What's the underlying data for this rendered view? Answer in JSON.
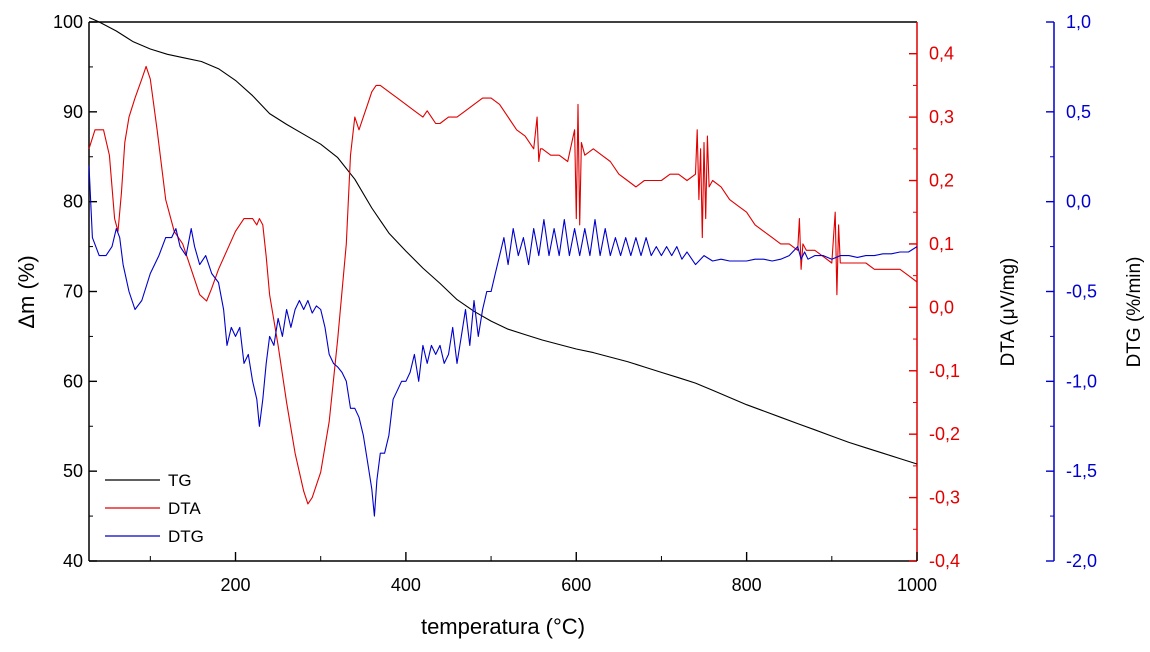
{
  "chart_data": {
    "type": "line",
    "x_axis": {
      "label": "temperatura (°C)",
      "range": [
        28,
        1000
      ],
      "ticks": [
        200,
        400,
        600,
        800,
        1000
      ],
      "tick_labels": [
        "200",
        "400",
        "600",
        "800",
        "1000"
      ]
    },
    "y_axes": {
      "left": {
        "label": "Δm (%)",
        "range": [
          40,
          100
        ],
        "ticks": [
          40,
          50,
          60,
          70,
          80,
          90,
          100
        ],
        "tick_labels": [
          "40",
          "50",
          "60",
          "70",
          "80",
          "90",
          "100"
        ],
        "color": "#000000"
      },
      "right1": {
        "label": "DTA (μV/mg)",
        "range": [
          -0.4,
          0.45
        ],
        "ticks": [
          -0.4,
          -0.3,
          -0.2,
          -0.1,
          0.0,
          0.1,
          0.2,
          0.3,
          0.4
        ],
        "tick_labels": [
          "-0,4",
          "-0,3",
          "-0,2",
          "-0,1",
          "0,0",
          "0,1",
          "0,2",
          "0,3",
          "0,4"
        ],
        "color": "#e00000"
      },
      "right2": {
        "label": "DTG (%/min)",
        "range": [
          -2.0,
          1.0
        ],
        "ticks": [
          -2.0,
          -1.5,
          -1.0,
          -0.5,
          0.0,
          0.5,
          1.0
        ],
        "tick_labels": [
          "-2,0",
          "-1,5",
          "-1,0",
          "-0,5",
          "0,0",
          "0,5",
          "1,0"
        ],
        "color": "#0000cc"
      }
    },
    "legend": {
      "position": "bottom-left",
      "entries": [
        "TG",
        "DTA",
        "DTG"
      ]
    },
    "series": [
      {
        "name": "TG",
        "axis": "left",
        "color": "#000000",
        "x": [
          28,
          40,
          60,
          80,
          100,
          120,
          140,
          160,
          180,
          200,
          220,
          240,
          260,
          280,
          300,
          320,
          340,
          360,
          380,
          400,
          420,
          440,
          460,
          480,
          500,
          520,
          540,
          560,
          580,
          600,
          620,
          640,
          660,
          680,
          700,
          720,
          740,
          760,
          780,
          800,
          820,
          840,
          860,
          880,
          900,
          920,
          940,
          960,
          980,
          1000
        ],
        "y": [
          100.5,
          100,
          99,
          97.8,
          97,
          96.4,
          96,
          95.6,
          94.8,
          93.5,
          91.8,
          89.8,
          88.6,
          87.5,
          86.4,
          84.9,
          82.5,
          79.3,
          76.5,
          74.5,
          72.6,
          70.9,
          69.1,
          67.8,
          66.7,
          65.8,
          65.2,
          64.6,
          64.1,
          63.6,
          63.2,
          62.7,
          62.2,
          61.6,
          61,
          60.4,
          59.8,
          59,
          58.2,
          57.4,
          56.7,
          56,
          55.3,
          54.6,
          53.9,
          53.2,
          52.6,
          52,
          51.4,
          50.8
        ]
      },
      {
        "name": "DTA",
        "axis": "right1",
        "color": "#e00000",
        "x": [
          28,
          35,
          45,
          52,
          58,
          62,
          66,
          70,
          75,
          82,
          90,
          95,
          100,
          108,
          118,
          128,
          138,
          148,
          158,
          166,
          172,
          180,
          190,
          200,
          210,
          220,
          225,
          228,
          232,
          236,
          240,
          250,
          260,
          270,
          280,
          285,
          290,
          300,
          310,
          320,
          330,
          335,
          340,
          345,
          350,
          355,
          360,
          365,
          370,
          380,
          390,
          400,
          410,
          420,
          425,
          430,
          435,
          440,
          450,
          460,
          470,
          480,
          490,
          500,
          510,
          520,
          530,
          540,
          550,
          554,
          556,
          558,
          560,
          570,
          580,
          590,
          598,
          600,
          602,
          604,
          606,
          610,
          620,
          630,
          640,
          650,
          660,
          670,
          680,
          690,
          700,
          710,
          720,
          730,
          740,
          742,
          744,
          746,
          748,
          750,
          752,
          754,
          756,
          760,
          770,
          780,
          790,
          800,
          810,
          820,
          830,
          840,
          850,
          860,
          862,
          864,
          866,
          870,
          880,
          890,
          900,
          904,
          906,
          908,
          910,
          920,
          930,
          940,
          950,
          960,
          970,
          980,
          990,
          1000
        ],
        "y": [
          0.25,
          0.28,
          0.28,
          0.24,
          0.14,
          0.12,
          0.18,
          0.26,
          0.3,
          0.33,
          0.36,
          0.38,
          0.36,
          0.28,
          0.17,
          0.12,
          0.1,
          0.06,
          0.02,
          0.01,
          0.03,
          0.06,
          0.09,
          0.12,
          0.14,
          0.14,
          0.13,
          0.14,
          0.13,
          0.08,
          0.02,
          -0.06,
          -0.15,
          -0.23,
          -0.29,
          -0.31,
          -0.3,
          -0.26,
          -0.18,
          -0.05,
          0.1,
          0.24,
          0.3,
          0.28,
          0.3,
          0.32,
          0.34,
          0.35,
          0.35,
          0.34,
          0.33,
          0.32,
          0.31,
          0.3,
          0.31,
          0.3,
          0.29,
          0.29,
          0.3,
          0.3,
          0.31,
          0.32,
          0.33,
          0.33,
          0.32,
          0.3,
          0.28,
          0.27,
          0.25,
          0.3,
          0.23,
          0.25,
          0.25,
          0.24,
          0.24,
          0.23,
          0.28,
          0.14,
          0.32,
          0.13,
          0.26,
          0.24,
          0.25,
          0.24,
          0.23,
          0.21,
          0.2,
          0.19,
          0.2,
          0.2,
          0.2,
          0.21,
          0.21,
          0.2,
          0.21,
          0.28,
          0.17,
          0.25,
          0.11,
          0.26,
          0.14,
          0.27,
          0.19,
          0.2,
          0.19,
          0.17,
          0.16,
          0.15,
          0.13,
          0.12,
          0.11,
          0.1,
          0.1,
          0.09,
          0.14,
          0.06,
          0.1,
          0.09,
          0.09,
          0.08,
          0.07,
          0.15,
          0.02,
          0.13,
          0.07,
          0.07,
          0.07,
          0.07,
          0.06,
          0.06,
          0.06,
          0.06,
          0.05,
          0.04
        ]
      },
      {
        "name": "DTG",
        "axis": "right2",
        "color": "#0000cc",
        "x": [
          28,
          32,
          40,
          48,
          55,
          60,
          64,
          68,
          75,
          82,
          90,
          100,
          110,
          118,
          125,
          130,
          135,
          142,
          148,
          152,
          158,
          165,
          172,
          180,
          186,
          190,
          195,
          200,
          205,
          210,
          215,
          220,
          225,
          228,
          232,
          236,
          240,
          245,
          250,
          255,
          260,
          265,
          270,
          275,
          280,
          285,
          290,
          295,
          300,
          305,
          310,
          315,
          320,
          325,
          330,
          335,
          340,
          345,
          350,
          355,
          360,
          363,
          366,
          370,
          375,
          380,
          385,
          390,
          395,
          400,
          405,
          410,
          415,
          420,
          425,
          430,
          435,
          440,
          445,
          450,
          455,
          460,
          465,
          470,
          475,
          480,
          485,
          490,
          495,
          500,
          505,
          510,
          515,
          520,
          526,
          532,
          538,
          544,
          550,
          556,
          562,
          568,
          574,
          580,
          586,
          592,
          598,
          604,
          610,
          616,
          622,
          628,
          634,
          640,
          646,
          652,
          658,
          664,
          670,
          676,
          682,
          688,
          694,
          700,
          706,
          712,
          718,
          724,
          730,
          740,
          750,
          760,
          770,
          780,
          790,
          800,
          810,
          820,
          830,
          840,
          850,
          860,
          864,
          868,
          872,
          880,
          890,
          900,
          910,
          920,
          930,
          940,
          950,
          960,
          970,
          980,
          990,
          1000
        ],
        "y": [
          0.2,
          -0.2,
          -0.3,
          -0.3,
          -0.25,
          -0.15,
          -0.2,
          -0.35,
          -0.5,
          -0.6,
          -0.55,
          -0.4,
          -0.3,
          -0.2,
          -0.2,
          -0.15,
          -0.25,
          -0.3,
          -0.15,
          -0.25,
          -0.35,
          -0.3,
          -0.4,
          -0.45,
          -0.6,
          -0.8,
          -0.7,
          -0.75,
          -0.7,
          -0.9,
          -0.85,
          -1.0,
          -1.1,
          -1.25,
          -1.1,
          -0.9,
          -0.75,
          -0.8,
          -0.65,
          -0.75,
          -0.6,
          -0.7,
          -0.6,
          -0.55,
          -0.6,
          -0.55,
          -0.62,
          -0.58,
          -0.6,
          -0.7,
          -0.85,
          -0.9,
          -0.92,
          -0.95,
          -1.0,
          -1.15,
          -1.15,
          -1.2,
          -1.3,
          -1.45,
          -1.6,
          -1.75,
          -1.55,
          -1.4,
          -1.4,
          -1.3,
          -1.1,
          -1.05,
          -1.0,
          -1.0,
          -0.95,
          -0.85,
          -1.0,
          -0.8,
          -0.9,
          -0.8,
          -0.85,
          -0.8,
          -0.9,
          -0.85,
          -0.7,
          -0.9,
          -0.75,
          -0.6,
          -0.8,
          -0.55,
          -0.75,
          -0.6,
          -0.5,
          -0.5,
          -0.4,
          -0.3,
          -0.2,
          -0.35,
          -0.15,
          -0.3,
          -0.2,
          -0.35,
          -0.15,
          -0.3,
          -0.1,
          -0.3,
          -0.15,
          -0.3,
          -0.1,
          -0.3,
          -0.15,
          -0.3,
          -0.15,
          -0.3,
          -0.1,
          -0.3,
          -0.15,
          -0.3,
          -0.2,
          -0.3,
          -0.2,
          -0.3,
          -0.2,
          -0.3,
          -0.2,
          -0.3,
          -0.25,
          -0.3,
          -0.25,
          -0.3,
          -0.25,
          -0.32,
          -0.28,
          -0.35,
          -0.3,
          -0.33,
          -0.32,
          -0.33,
          -0.33,
          -0.33,
          -0.32,
          -0.32,
          -0.33,
          -0.32,
          -0.3,
          -0.25,
          -0.32,
          -0.28,
          -0.32,
          -0.3,
          -0.3,
          -0.32,
          -0.3,
          -0.3,
          -0.31,
          -0.3,
          -0.3,
          -0.29,
          -0.29,
          -0.28,
          -0.28,
          -0.25
        ]
      }
    ]
  }
}
